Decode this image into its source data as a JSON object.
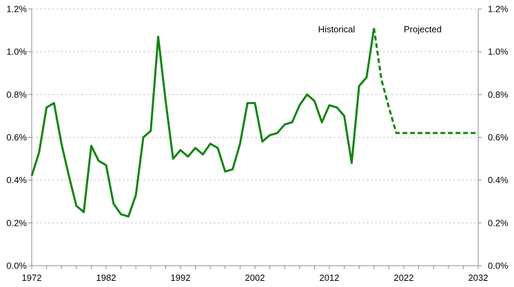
{
  "chart_data": {
    "type": "line",
    "title": "",
    "xlabel": "",
    "ylabel": "",
    "x_ticks": [
      1972,
      1982,
      1992,
      2002,
      2012,
      2022,
      2032
    ],
    "y_ticks": [
      0,
      0.2,
      0.4,
      0.6,
      0.8,
      1.0,
      1.2
    ],
    "y_tick_labels": [
      "0.0%",
      "0.2%",
      "0.4%",
      "0.6%",
      "0.8%",
      "1.0%",
      "1.2%"
    ],
    "xlim": [
      1972,
      2032
    ],
    "ylim": [
      0,
      1.2
    ],
    "grid": "horizontal dashed",
    "secondary_y_axis": "mirrors left axis",
    "annotations": [
      {
        "text": "Historical",
        "x": 2010.5,
        "y": 1.09
      },
      {
        "text": "Projected",
        "x": 2022,
        "y": 1.09
      }
    ],
    "series": [
      {
        "style": "solid",
        "color": "#128412",
        "x": [
          1972,
          1973,
          1974,
          1975,
          1976,
          1977,
          1978,
          1979,
          1980,
          1981,
          1982,
          1983,
          1984,
          1985,
          1986,
          1987,
          1988,
          1989,
          1990,
          1991,
          1992,
          1993,
          1994,
          1995,
          1996,
          1997,
          1998,
          1999,
          2000,
          2001,
          2002,
          2003,
          2004,
          2005,
          2006,
          2007,
          2008,
          2009,
          2010,
          2011,
          2012,
          2013,
          2014,
          2015,
          2016,
          2017,
          2018
        ],
        "values": [
          0.42,
          0.53,
          0.74,
          0.76,
          0.57,
          0.42,
          0.28,
          0.25,
          0.56,
          0.49,
          0.47,
          0.29,
          0.24,
          0.23,
          0.33,
          0.6,
          0.63,
          1.07,
          0.77,
          0.5,
          0.54,
          0.51,
          0.55,
          0.52,
          0.57,
          0.55,
          0.44,
          0.45,
          0.57,
          0.76,
          0.76,
          0.58,
          0.61,
          0.62,
          0.66,
          0.67,
          0.75,
          0.8,
          0.77,
          0.67,
          0.75,
          0.74,
          0.7,
          0.48,
          0.84,
          0.88,
          1.11
        ]
      },
      {
        "style": "dashed",
        "color": "#128412",
        "x": [
          2018,
          2019,
          2020,
          2021,
          2022,
          2023,
          2024,
          2025,
          2026,
          2027,
          2028,
          2029,
          2030,
          2031,
          2032
        ],
        "values": [
          1.11,
          0.87,
          0.74,
          0.62,
          0.62,
          0.62,
          0.62,
          0.62,
          0.62,
          0.62,
          0.62,
          0.62,
          0.62,
          0.62,
          0.62
        ]
      }
    ]
  }
}
